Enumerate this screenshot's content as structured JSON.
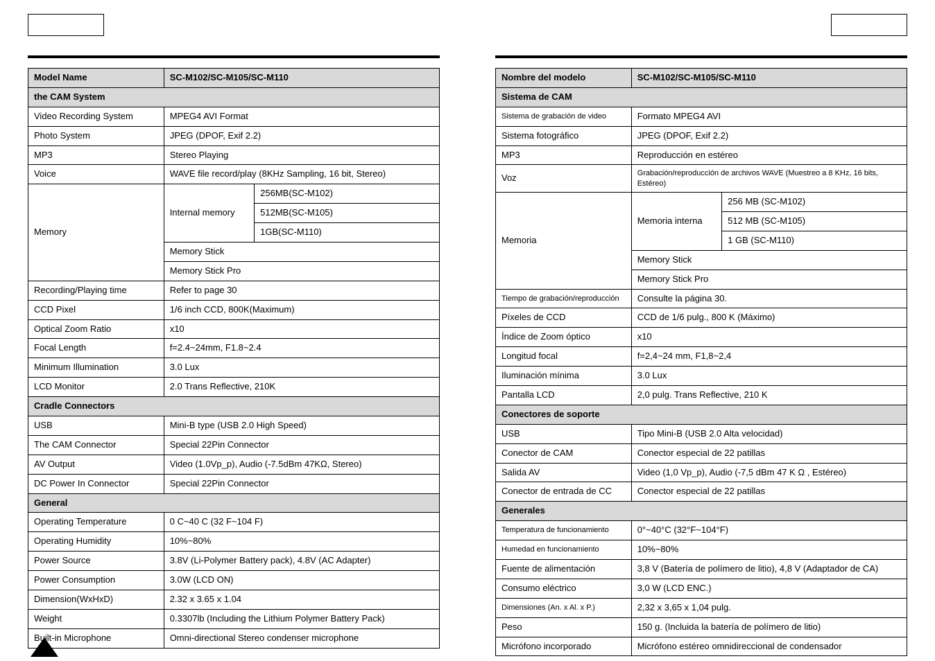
{
  "left": {
    "header_model_label": "Model Name",
    "header_model_value": "SC-M102/SC-M105/SC-M110",
    "cam_system_header": "the CAM System",
    "rows_cam": [
      [
        "Video Recording System",
        "MPEG4 AVI Format"
      ],
      [
        "Photo System",
        "JPEG (DPOF, Exif 2.2)"
      ],
      [
        "MP3",
        "Stereo Playing"
      ],
      [
        "Voice",
        "WAVE file record/play (8KHz Sampling, 16 bit, Stereo)"
      ]
    ],
    "memory_label": "Memory",
    "memory_internal_label": "Internal memory",
    "memory_internal_values": [
      "256MB(SC-M102)",
      "512MB(SC-M105)",
      "1GB(SC-M110)"
    ],
    "memory_stick": "Memory Stick",
    "memory_stick_pro": "Memory Stick Pro",
    "rows_cam2": [
      [
        "Recording/Playing time",
        "Refer to page 30"
      ],
      [
        "CCD Pixel",
        "1/6 inch CCD, 800K(Maximum)"
      ],
      [
        "Optical Zoom Ratio",
        "x10"
      ],
      [
        "Focal Length",
        "f=2.4~24mm, F1.8~2.4"
      ],
      [
        "Minimum Illumination",
        "3.0 Lux"
      ],
      [
        "LCD Monitor",
        "2.0  Trans Reflective, 210K"
      ]
    ],
    "cradle_header": "Cradle Connectors",
    "rows_cradle": [
      [
        "USB",
        "Mini-B type (USB 2.0 High Speed)"
      ],
      [
        "The CAM Connector",
        "Special 22Pin Connector"
      ],
      [
        "AV Output",
        "Video (1.0Vp_p), Audio (-7.5dBm 47KΩ, Stereo)"
      ],
      [
        "DC Power In Connector",
        "Special 22Pin Connector"
      ]
    ],
    "general_header": "General",
    "rows_general": [
      [
        "Operating Temperature",
        "0 C~40 C (32 F~104 F)"
      ],
      [
        "Operating Humidity",
        "10%~80%"
      ],
      [
        "Power Source",
        "3.8V (Li-Polymer Battery pack), 4.8V (AC Adapter)"
      ],
      [
        "Power Consumption",
        "3.0W (LCD ON)"
      ],
      [
        "Dimension(WxHxD)",
        "2.32 x 3.65  x 1.04"
      ],
      [
        "Weight",
        "0.3307lb (Including the Lithium Polymer Battery Pack)"
      ],
      [
        "Built-in Microphone",
        "Omni-directional Stereo condenser microphone"
      ]
    ]
  },
  "right": {
    "header_model_label": "Nombre del modelo",
    "header_model_value": "SC-M102/SC-M105/SC-M110",
    "cam_system_header": "Sistema de CAM",
    "rows_cam": [
      [
        "Sistema de grabación de video",
        "Formato MPEG4 AVI"
      ],
      [
        "Sistema fotográfico",
        "JPEG (DPOF, Exif 2.2)"
      ],
      [
        "MP3",
        "Reproducción en estéreo"
      ],
      [
        "Voz",
        "Grabación/reproducción de archivos WAVE (Muestreo a 8 KHz, 16 bits, Estéreo)"
      ]
    ],
    "memory_label": "Memoria",
    "memory_internal_label": "Memoria interna",
    "memory_internal_values": [
      "256 MB (SC-M102)",
      "512 MB (SC-M105)",
      "1 GB (SC-M110)"
    ],
    "memory_stick": "Memory Stick",
    "memory_stick_pro": "Memory Stick Pro",
    "rows_cam2": [
      [
        "Tiempo de grabación/reproducción",
        "Consulte la página 30."
      ],
      [
        "Píxeles de CCD",
        "CCD de 1/6 pulg., 800 K (Máximo)"
      ],
      [
        "Índice de Zoom óptico",
        "x10"
      ],
      [
        "Longitud focal",
        "f=2,4~24 mm, F1,8~2,4"
      ],
      [
        "Iluminación mínima",
        "3.0 Lux"
      ],
      [
        "Pantalla LCD",
        "2,0 pulg. Trans Reflective, 210 K"
      ]
    ],
    "cradle_header": "Conectores de soporte",
    "rows_cradle": [
      [
        "USB",
        "Tipo Mini-B (USB 2.0 Alta velocidad)"
      ],
      [
        "Conector de CAM",
        "Conector especial de 22 patillas"
      ],
      [
        "Salida AV",
        "Video (1,0 Vp_p), Audio (-7,5 dBm 47 K Ω , Estéreo)"
      ],
      [
        "Conector de entrada de CC",
        "Conector especial de 22 patillas"
      ]
    ],
    "general_header": "Generales",
    "rows_general": [
      [
        "Temperatura de funcionamiento",
        "0°~40°C (32°F~104°F)"
      ],
      [
        "Humedad en funcionamiento",
        "10%~80%"
      ],
      [
        "Fuente de alimentación",
        "3,8 V (Batería de polímero de litio), 4,8 V (Adaptador de CA)"
      ],
      [
        "Consumo eléctrico",
        "3,0 W (LCD ENC.)"
      ],
      [
        "Dimensiones (An. x Al. x P.)",
        "2,32 x 3,65 x 1,04 pulg."
      ],
      [
        "Peso",
        "150 g. (Incluida la batería de polímero de litio)"
      ],
      [
        "Micrófono incorporado",
        "Micrófono estéreo omnidireccional de condensador"
      ]
    ]
  },
  "style": {
    "header_bg": "#d9d9d9",
    "border_color": "#000000",
    "font_size_body": 13,
    "font_size_small": 11
  }
}
